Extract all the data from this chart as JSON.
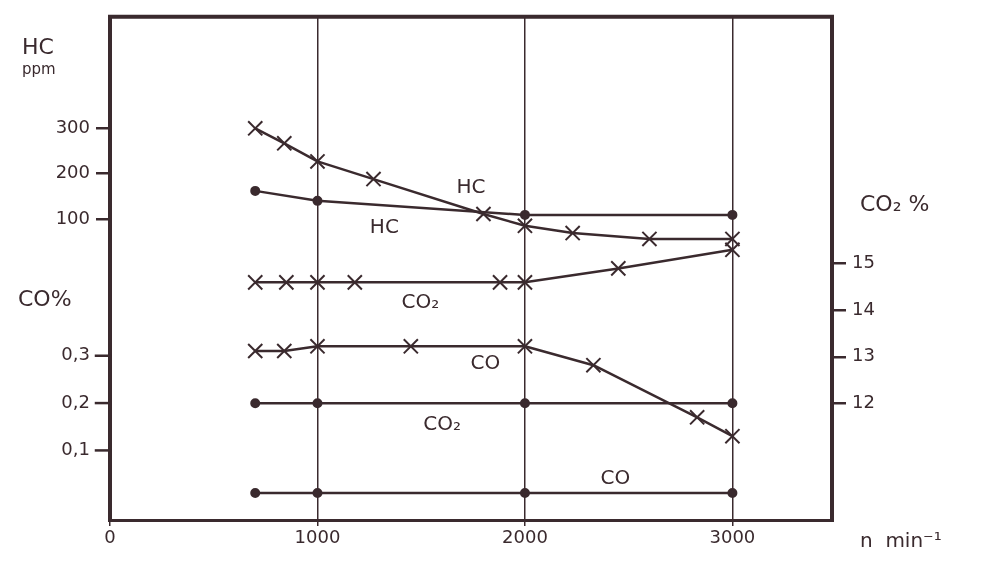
{
  "chart_data": {
    "type": "line",
    "xlabel": "n  min⁻¹",
    "ylabel": "HC ppm",
    "y2label": "CO₂ %",
    "y3label": "CO%",
    "xlim": [
      0,
      3480
    ],
    "xticks": [
      0,
      1000,
      2000,
      3000
    ],
    "ylim": [
      -564,
      546
    ],
    "yticks": [
      100,
      200,
      300
    ],
    "y2lim": [
      9.49,
      20.31
    ],
    "y2ticks": [
      12,
      13,
      14,
      15
    ],
    "y3lim": [
      -0.047,
      1.016
    ],
    "y3ticks": [
      {
        "value": 0.1,
        "label": "0,1"
      },
      {
        "value": 0.2,
        "label": "0,2"
      },
      {
        "value": 0.3,
        "label": "0,3"
      }
    ],
    "grid": "x",
    "series": [
      {
        "name": "HC",
        "color": "#3a2a2e",
        "marker": "cross",
        "x": [
          700,
          840,
          1000,
          1270,
          1800,
          2000,
          2230,
          2600,
          3000
        ],
        "values": [
          300,
          267,
          227,
          188,
          111,
          85,
          69,
          56,
          56
        ]
      },
      {
        "name": "HC",
        "color": "#3a2a2e",
        "marker": "circle",
        "x": [
          700,
          1000,
          2000,
          3000
        ],
        "values": [
          162,
          140,
          109,
          109
        ]
      },
      {
        "name": "CO₂",
        "color": "#3a2a2e",
        "marker": "cross",
        "axis": "y2",
        "x": [
          700,
          850,
          1000,
          1180,
          1880,
          2000,
          2450,
          3000
        ],
        "values": [
          14.6,
          14.6,
          14.6,
          14.6,
          14.6,
          14.6,
          14.9,
          15.3
        ]
      },
      {
        "name": "CO₂",
        "color": "#3a2a2e",
        "marker": "circle",
        "axis": "y2",
        "x": [
          700,
          1000,
          2000,
          3000
        ],
        "values": [
          12.0,
          12.0,
          12.0,
          12.0
        ]
      },
      {
        "name": "CO",
        "color": "#3a2a2e",
        "marker": "cross",
        "axis": "y3",
        "x": [
          700,
          840,
          1000,
          1450,
          2000,
          2330,
          2830,
          3000
        ],
        "values": [
          0.31,
          0.31,
          0.32,
          0.32,
          0.32,
          0.28,
          0.17,
          0.13
        ]
      },
      {
        "name": "CO",
        "color": "#3a2a2e",
        "marker": "circle",
        "axis": "y3",
        "x": [
          700,
          1000,
          2000,
          3000
        ],
        "values": [
          0.01,
          0.01,
          0.01,
          0.01
        ]
      }
    ]
  }
}
